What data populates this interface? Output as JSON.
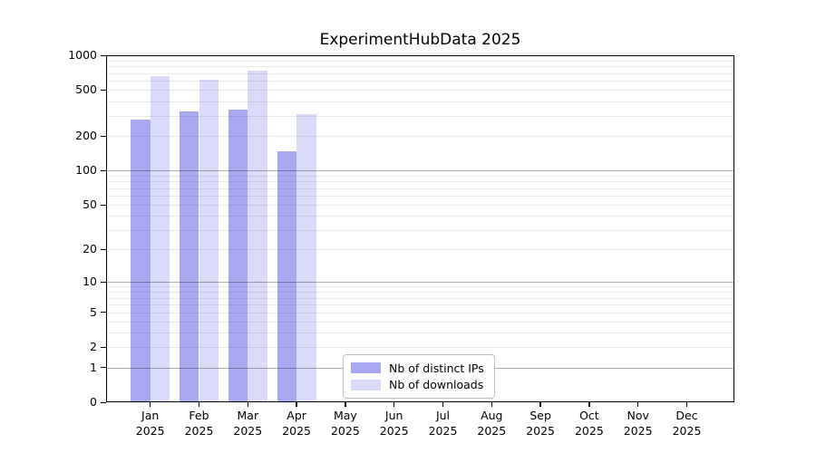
{
  "chart_data": {
    "type": "bar",
    "title": "ExperimentHubData 2025",
    "categories": [
      "Jan",
      "Feb",
      "Mar",
      "Apr",
      "May",
      "Jun",
      "Jul",
      "Aug",
      "Sep",
      "Oct",
      "Nov",
      "Dec"
    ],
    "category_year": "2025",
    "series": [
      {
        "name": "Nb of distinct IPs",
        "color": "#a9a9f2",
        "values": [
          276,
          324,
          336,
          147,
          null,
          null,
          null,
          null,
          null,
          null,
          null,
          null
        ]
      },
      {
        "name": "Nb of downloads",
        "color": "#dadaf9",
        "values": [
          660,
          611,
          735,
          310,
          null,
          null,
          null,
          null,
          null,
          null,
          null,
          null
        ]
      }
    ],
    "y_axis": {
      "scale": "log1p",
      "min": 0,
      "max": 1000,
      "tick_values": [
        1000,
        500,
        200,
        100,
        50,
        20,
        10,
        5,
        2,
        1,
        0
      ],
      "major_grid_values": [
        1,
        10,
        100
      ],
      "minor_grid_decades": [
        1,
        10,
        100
      ],
      "grid": true
    },
    "legend_position": "lower center-left inside plot",
    "colors": {
      "grid_major": "rgba(0,0,0,0.32)",
      "grid_minor": "rgba(0,0,0,0.08)",
      "spine": "#000000",
      "text": "#000000",
      "background": "#ffffff"
    }
  }
}
